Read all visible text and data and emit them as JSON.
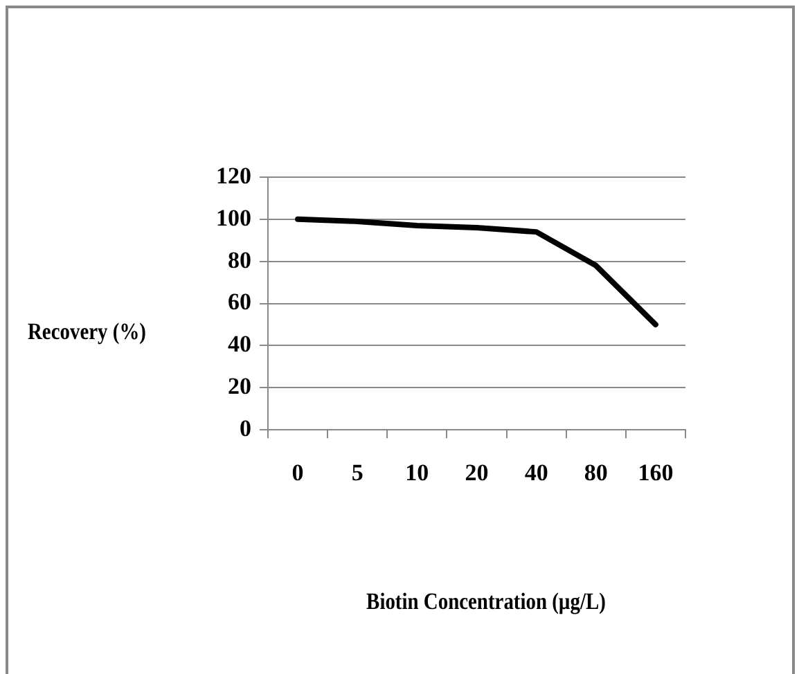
{
  "chart_data": {
    "type": "line",
    "xlabel": "Biotin Concentration (µg/L)",
    "ylabel": "Recovery (%)",
    "categories": [
      "0",
      "5",
      "10",
      "20",
      "40",
      "80",
      "160"
    ],
    "series": [
      {
        "color": "#000000",
        "values": [
          100,
          99,
          97,
          96,
          94,
          78,
          50
        ]
      }
    ],
    "ylim": [
      0,
      120
    ],
    "yticks": [
      0,
      20,
      40,
      60,
      80,
      100,
      120
    ],
    "grid": "y",
    "legend": false,
    "marker": "none",
    "line_style": "solid"
  }
}
